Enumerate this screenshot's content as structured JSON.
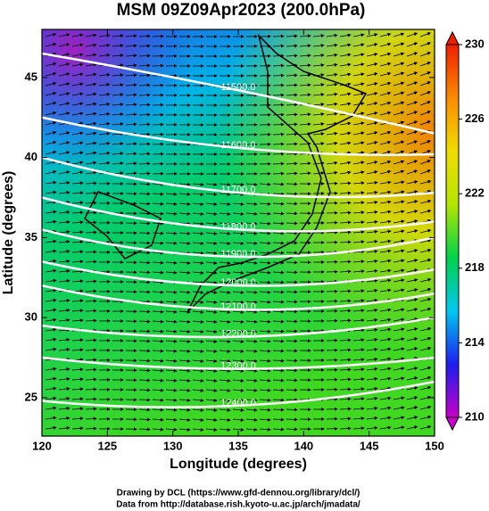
{
  "chart_data": {
    "type": "contour-map",
    "title": "MSM 09Z09Apr2023 (200.0hPa)",
    "xlabel": "Longitude (degrees)",
    "ylabel": "Latitude  (degrees)",
    "footer": [
      "Drawing by DCL (https://www.gfd-dennou.org/library/dcl/)",
      "Data from http://database.rish.kyoto-u.ac.jp/arch/jmadata/"
    ],
    "xlim": [
      120,
      150
    ],
    "ylim": [
      22.6,
      48
    ],
    "xticks": [
      120,
      125,
      130,
      135,
      140,
      145,
      150
    ],
    "yticks": [
      25,
      30,
      35,
      40,
      45
    ],
    "colorbar": {
      "lim": [
        210,
        230
      ],
      "ticks": [
        210,
        214,
        218,
        222,
        226,
        230
      ],
      "colors": [
        "#c800c8",
        "#1e1ef0",
        "#00c8f0",
        "#00d24b",
        "#b4e600",
        "#f0dc00",
        "#fa8c00",
        "#f01e00"
      ]
    },
    "contours": [
      {
        "value": 11500,
        "label": "11500.0",
        "lon": [
          120,
          135,
          150
        ],
        "lat": [
          46.5,
          44.2,
          41.5
        ]
      },
      {
        "value": 11600,
        "label": "11600.0",
        "lon": [
          120,
          135,
          150
        ],
        "lat": [
          42.5,
          40.6,
          40.2
        ]
      },
      {
        "value": 11700,
        "label": "11700.0",
        "lon": [
          120,
          135,
          150
        ],
        "lat": [
          40,
          37.8,
          37.8
        ]
      },
      {
        "value": 11800,
        "label": "11800.0",
        "lon": [
          120,
          135,
          150
        ],
        "lat": [
          37.5,
          35.5,
          36
        ]
      },
      {
        "value": 11900,
        "label": "11900.0",
        "lon": [
          120,
          135,
          150
        ],
        "lat": [
          35.5,
          33.8,
          35
        ]
      },
      {
        "value": 12000,
        "label": "12000.0",
        "lon": [
          120,
          135,
          150
        ],
        "lat": [
          33.5,
          32,
          33
        ]
      },
      {
        "value": 12100,
        "label": "12100.0",
        "lon": [
          120,
          135,
          150
        ],
        "lat": [
          32,
          30.5,
          31.5
        ]
      },
      {
        "value": 12200,
        "label": "12200.0",
        "lon": [
          120,
          135,
          150
        ],
        "lat": [
          29.5,
          28.8,
          30
        ]
      },
      {
        "value": 12300,
        "label": "12300.0",
        "lon": [
          120,
          135,
          150
        ],
        "lat": [
          27.5,
          26.8,
          27.5
        ]
      },
      {
        "value": 12400,
        "label": "12400.0",
        "lon": [
          120,
          135,
          150
        ],
        "lat": [
          24.8,
          24.5,
          26
        ]
      }
    ]
  }
}
